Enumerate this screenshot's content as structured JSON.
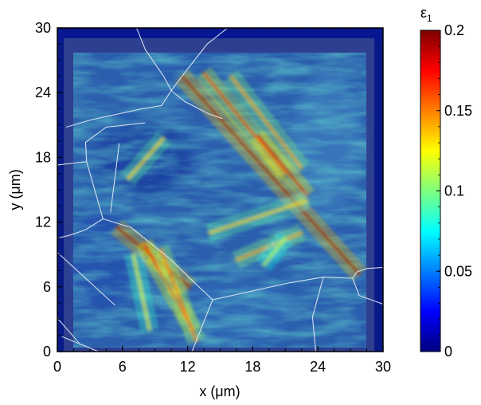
{
  "chart_data": {
    "type": "heatmap",
    "title": "",
    "xlabel": "x (μm)",
    "ylabel": "y (μm)",
    "xlim": [
      0,
      30
    ],
    "ylim": [
      0,
      30
    ],
    "xticks": [
      0,
      6,
      12,
      18,
      24,
      30
    ],
    "yticks": [
      0,
      6,
      12,
      18,
      24,
      30
    ],
    "xtick_labels": [
      "0",
      "6",
      "12",
      "18",
      "24",
      "30"
    ],
    "ytick_labels": [
      "0",
      "6",
      "12",
      "18",
      "24",
      "30"
    ],
    "colorbar": {
      "label": "ε1",
      "label_main": "ε",
      "label_sub": "1",
      "range": [
        0,
        0.2
      ],
      "ticks": [
        0,
        0.05,
        0.1,
        0.15,
        0.2
      ],
      "tick_labels": [
        "0",
        "0.05",
        "0.1",
        "0.15",
        "0.2"
      ],
      "colormap": "jet"
    },
    "grid": false,
    "legend": "none",
    "grain_boundaries": [
      [
        [
          7.3,
          30
        ],
        [
          8.1,
          28
        ],
        [
          9.8,
          25.5
        ],
        [
          10.5,
          24.2
        ]
      ],
      [
        [
          15.7,
          30
        ],
        [
          13.8,
          28.5
        ],
        [
          11.7,
          25.8
        ],
        [
          10.5,
          24.2
        ],
        [
          9.6,
          22.8
        ],
        [
          7.8,
          22.5
        ],
        [
          3.2,
          21.5
        ],
        [
          0.8,
          20.8
        ]
      ],
      [
        [
          10.5,
          24.2
        ],
        [
          11.7,
          23.2
        ],
        [
          14,
          22
        ],
        [
          15.2,
          21.6
        ]
      ],
      [
        [
          8.1,
          21.2
        ],
        [
          4.5,
          20.8
        ],
        [
          2.6,
          19.4
        ],
        [
          2.7,
          17.6
        ],
        [
          0,
          17.3
        ]
      ],
      [
        [
          2.7,
          17.6
        ],
        [
          4.2,
          12.3
        ],
        [
          2.6,
          11.3
        ],
        [
          1.2,
          10.8
        ],
        [
          0,
          10.5
        ]
      ],
      [
        [
          4.2,
          12.3
        ],
        [
          6.8,
          11.5
        ],
        [
          10.5,
          8.5
        ],
        [
          12.3,
          6.7
        ],
        [
          14.3,
          4.8
        ],
        [
          12.4,
          0
        ]
      ],
      [
        [
          14.3,
          4.8
        ],
        [
          21.5,
          6.4
        ],
        [
          24.5,
          6.9
        ],
        [
          27.2,
          6.8
        ],
        [
          27.6,
          7.4
        ],
        [
          28.5,
          7.7
        ],
        [
          30,
          7.8
        ]
      ],
      [
        [
          27.2,
          6.8
        ],
        [
          27.8,
          5.2
        ],
        [
          30,
          4.4
        ]
      ],
      [
        [
          24.5,
          6.9
        ],
        [
          23.5,
          3.2
        ],
        [
          23.8,
          0
        ]
      ],
      [
        [
          5.7,
          19.3
        ],
        [
          4.9,
          12.9
        ]
      ],
      [
        [
          0,
          9.2
        ],
        [
          5.3,
          4.3
        ]
      ],
      [
        [
          0,
          3.1
        ],
        [
          2,
          0.8
        ]
      ],
      [
        [
          0.4,
          1.4
        ],
        [
          3.8,
          0
        ]
      ]
    ],
    "strain_bands": [
      {
        "from": [
          11.5,
          25.5
        ],
        "to": [
          27.8,
          7.2
        ],
        "level": 0.19
      },
      {
        "from": [
          13.5,
          25.8
        ],
        "to": [
          21,
          16.5
        ],
        "level": 0.16
      },
      {
        "from": [
          16,
          25.5
        ],
        "to": [
          22.5,
          17
        ],
        "level": 0.14
      },
      {
        "from": [
          18.5,
          20
        ],
        "to": [
          23,
          14.5
        ],
        "level": 0.18
      },
      {
        "from": [
          5.5,
          11.5
        ],
        "to": [
          12.2,
          6
        ],
        "level": 0.19
      },
      {
        "from": [
          8,
          10
        ],
        "to": [
          12.5,
          2
        ],
        "level": 0.17
      },
      {
        "from": [
          9.5,
          9.5
        ],
        "to": [
          12.8,
          1
        ],
        "level": 0.15
      },
      {
        "from": [
          7,
          9
        ],
        "to": [
          8.5,
          2
        ],
        "level": 0.12
      },
      {
        "from": [
          14,
          11
        ],
        "to": [
          23,
          14
        ],
        "level": 0.13
      },
      {
        "from": [
          16.5,
          8.5
        ],
        "to": [
          22.5,
          11
        ],
        "level": 0.14
      },
      {
        "from": [
          6.5,
          16
        ],
        "to": [
          9.8,
          19.8
        ],
        "level": 0.13
      },
      {
        "from": [
          21,
          10.5
        ],
        "to": [
          19,
          8
        ],
        "level": 0.11
      }
    ]
  }
}
